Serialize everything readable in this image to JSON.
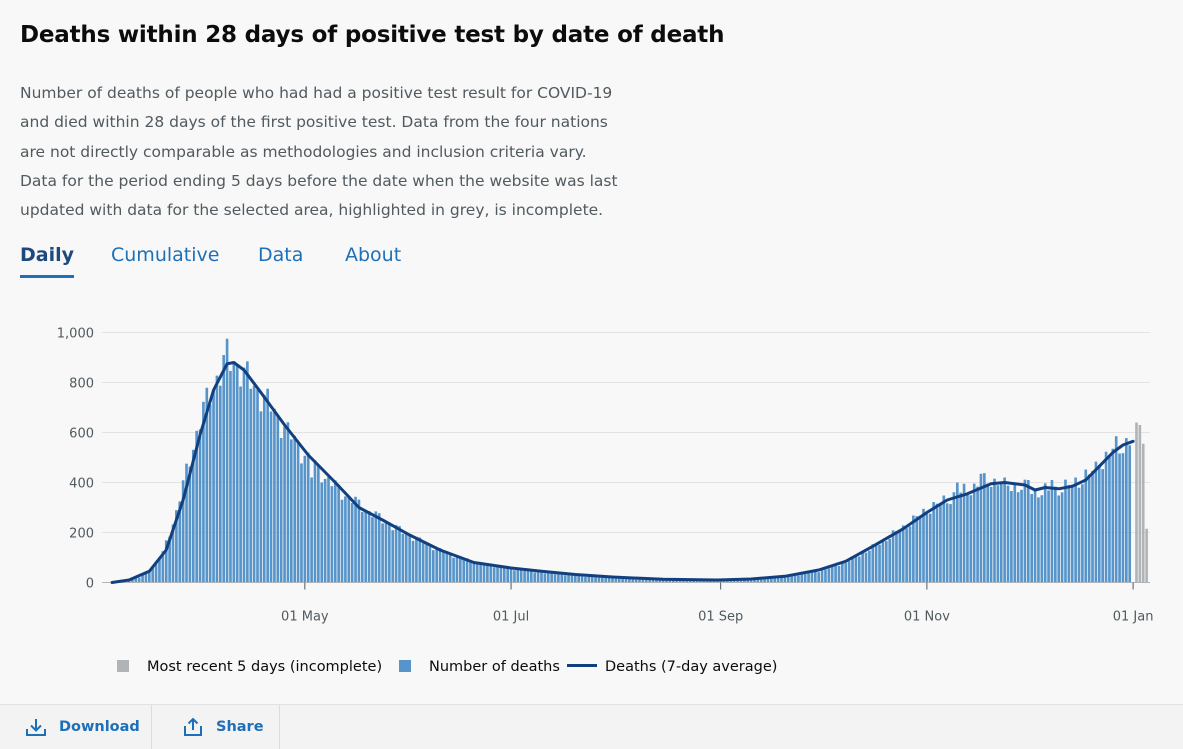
{
  "title": "Deaths within 28 days of positive test by date of death",
  "description": [
    "Number of deaths of people who had had a positive test result for COVID-19",
    "and died within 28 days of the first positive test. Data from the four nations",
    "are not directly comparable as methodologies and inclusion criteria vary.",
    "Data for the period ending 5 days before the date when the website was last",
    "updated with data for the selected area, highlighted in grey, is incomplete."
  ],
  "tabs": [
    {
      "label": "Daily",
      "active": true
    },
    {
      "label": "Cumulative",
      "active": false
    },
    {
      "label": "Data",
      "active": false
    },
    {
      "label": "About",
      "active": false
    }
  ],
  "legend": {
    "incomplete": "Most recent 5 days (incomplete)",
    "bars": "Number of deaths",
    "line": "Deaths (7-day average)"
  },
  "footer": {
    "download": "Download",
    "share": "Share"
  },
  "colors": {
    "bar": "#5694ca",
    "bar_incomplete": "#b1b4b6",
    "line": "#12407f",
    "active_tab": "#1d4a7d",
    "link": "#1d70b8"
  },
  "chart_data": {
    "type": "bar",
    "x_axis": {
      "type": "date",
      "start": "2020-03-02",
      "end": "2021-01-06",
      "ticks": [
        {
          "label": "01 May",
          "date": "2020-05-01"
        },
        {
          "label": "01 Jul",
          "date": "2020-07-01"
        },
        {
          "label": "01 Sep",
          "date": "2020-09-01"
        },
        {
          "label": "01 Nov",
          "date": "2020-11-01"
        },
        {
          "label": "01 Jan",
          "date": "2021-01-01"
        }
      ]
    },
    "y_axis": {
      "min": 0,
      "max": 1000,
      "ticks": [
        0,
        200,
        400,
        600,
        800,
        1000
      ],
      "tick_labels": [
        "0",
        "200",
        "400",
        "600",
        "800",
        "1,000"
      ]
    },
    "grid": true,
    "legend_position": "bottom",
    "daily_anchors": [
      [
        "2020-03-02",
        0
      ],
      [
        "2020-03-08",
        4
      ],
      [
        "2020-03-13",
        20
      ],
      [
        "2020-03-17",
        60
      ],
      [
        "2020-03-20",
        120
      ],
      [
        "2020-03-24",
        280
      ],
      [
        "2020-03-28",
        500
      ],
      [
        "2020-04-01",
        690
      ],
      [
        "2020-04-05",
        820
      ],
      [
        "2020-04-08",
        880
      ],
      [
        "2020-04-10",
        890
      ],
      [
        "2020-04-12",
        850
      ],
      [
        "2020-04-15",
        800
      ],
      [
        "2020-04-20",
        720
      ],
      [
        "2020-04-25",
        620
      ],
      [
        "2020-05-01",
        510
      ],
      [
        "2020-05-07",
        420
      ],
      [
        "2020-05-13",
        350
      ],
      [
        "2020-05-20",
        285
      ],
      [
        "2020-05-27",
        225
      ],
      [
        "2020-06-03",
        175
      ],
      [
        "2020-06-10",
        130
      ],
      [
        "2020-06-17",
        95
      ],
      [
        "2020-06-24",
        72
      ],
      [
        "2020-07-01",
        55
      ],
      [
        "2020-07-10",
        40
      ],
      [
        "2020-07-20",
        28
      ],
      [
        "2020-07-31",
        18
      ],
      [
        "2020-08-10",
        12
      ],
      [
        "2020-08-20",
        9
      ],
      [
        "2020-08-31",
        8
      ],
      [
        "2020-09-10",
        12
      ],
      [
        "2020-09-20",
        22
      ],
      [
        "2020-09-30",
        45
      ],
      [
        "2020-10-08",
        80
      ],
      [
        "2020-10-16",
        140
      ],
      [
        "2020-10-24",
        210
      ],
      [
        "2020-11-01",
        290
      ],
      [
        "2020-11-08",
        340
      ],
      [
        "2020-11-16",
        390
      ],
      [
        "2020-11-20",
        410
      ],
      [
        "2020-11-28",
        380
      ],
      [
        "2020-12-05",
        360
      ],
      [
        "2020-12-12",
        380
      ],
      [
        "2020-12-19",
        430
      ],
      [
        "2020-12-25",
        510
      ],
      [
        "2020-12-27",
        545
      ],
      [
        "2020-12-31",
        560
      ]
    ],
    "spikes": [
      [
        "2020-04-08",
        975
      ],
      [
        "2020-04-07",
        910
      ],
      [
        "2020-05-06",
        400
      ],
      [
        "2020-05-03",
        420
      ],
      [
        "2020-11-10",
        400
      ],
      [
        "2020-11-17",
        435
      ],
      [
        "2020-11-24",
        420
      ],
      [
        "2020-12-01",
        410
      ],
      [
        "2020-12-08",
        410
      ],
      [
        "2020-12-15",
        420
      ],
      [
        "2020-12-22",
        470
      ]
    ],
    "average_anchors": [
      [
        "2020-03-05",
        0
      ],
      [
        "2020-03-10",
        10
      ],
      [
        "2020-03-16",
        45
      ],
      [
        "2020-03-21",
        130
      ],
      [
        "2020-03-26",
        330
      ],
      [
        "2020-03-31",
        590
      ],
      [
        "2020-04-04",
        770
      ],
      [
        "2020-04-08",
        875
      ],
      [
        "2020-04-10",
        880
      ],
      [
        "2020-04-13",
        850
      ],
      [
        "2020-04-18",
        760
      ],
      [
        "2020-04-25",
        630
      ],
      [
        "2020-05-02",
        510
      ],
      [
        "2020-05-10",
        400
      ],
      [
        "2020-05-17",
        300
      ],
      [
        "2020-05-24",
        250
      ],
      [
        "2020-06-01",
        190
      ],
      [
        "2020-06-10",
        130
      ],
      [
        "2020-06-20",
        80
      ],
      [
        "2020-07-01",
        58
      ],
      [
        "2020-07-10",
        45
      ],
      [
        "2020-07-20",
        32
      ],
      [
        "2020-07-31",
        22
      ],
      [
        "2020-08-15",
        13
      ],
      [
        "2020-08-31",
        10
      ],
      [
        "2020-09-10",
        14
      ],
      [
        "2020-09-20",
        25
      ],
      [
        "2020-09-30",
        50
      ],
      [
        "2020-10-08",
        85
      ],
      [
        "2020-10-16",
        145
      ],
      [
        "2020-10-25",
        215
      ],
      [
        "2020-11-01",
        280
      ],
      [
        "2020-11-07",
        330
      ],
      [
        "2020-11-13",
        355
      ],
      [
        "2020-11-20",
        395
      ],
      [
        "2020-11-24",
        400
      ],
      [
        "2020-11-30",
        390
      ],
      [
        "2020-12-03",
        370
      ],
      [
        "2020-12-06",
        380
      ],
      [
        "2020-12-10",
        375
      ],
      [
        "2020-12-14",
        385
      ],
      [
        "2020-12-18",
        410
      ],
      [
        "2020-12-22",
        465
      ],
      [
        "2020-12-26",
        520
      ],
      [
        "2020-12-29",
        550
      ],
      [
        "2021-01-01",
        565
      ]
    ],
    "incomplete_days": [
      [
        "2021-01-02",
        640
      ],
      [
        "2021-01-03",
        630
      ],
      [
        "2021-01-04",
        555
      ],
      [
        "2021-01-05",
        215
      ]
    ]
  }
}
